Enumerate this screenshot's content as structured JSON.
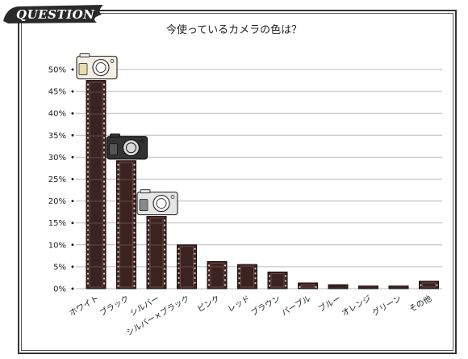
{
  "header": {
    "badge": "QUESTION"
  },
  "chart_data": {
    "type": "bar",
    "title": "今使っているカメラの色は？",
    "categories": [
      "ホワイト",
      "ブラック",
      "シルバー",
      "シルバー×ブラック",
      "ピンク",
      "レッド",
      "ブラウン",
      "パープル",
      "ブルー",
      "オレンジ",
      "グリーン",
      "その他"
    ],
    "values": [
      47.5,
      29.2,
      16.5,
      10.0,
      6.2,
      5.5,
      3.8,
      1.3,
      0.9,
      0.6,
      0.6,
      1.7
    ],
    "yticks": [
      "0%",
      "5%",
      "10%",
      "15%",
      "20%",
      "25%",
      "30%",
      "35%",
      "40%",
      "45%",
      "50%"
    ],
    "ylim": [
      0,
      50
    ],
    "grid": true,
    "colors": {
      "bar": "#3a2320",
      "bar_edge": "#1a0f0e",
      "grid": "#bbbbbb"
    },
    "icons": [
      "white-camera-icon",
      "black-camera-icon",
      "silver-camera-icon"
    ]
  }
}
